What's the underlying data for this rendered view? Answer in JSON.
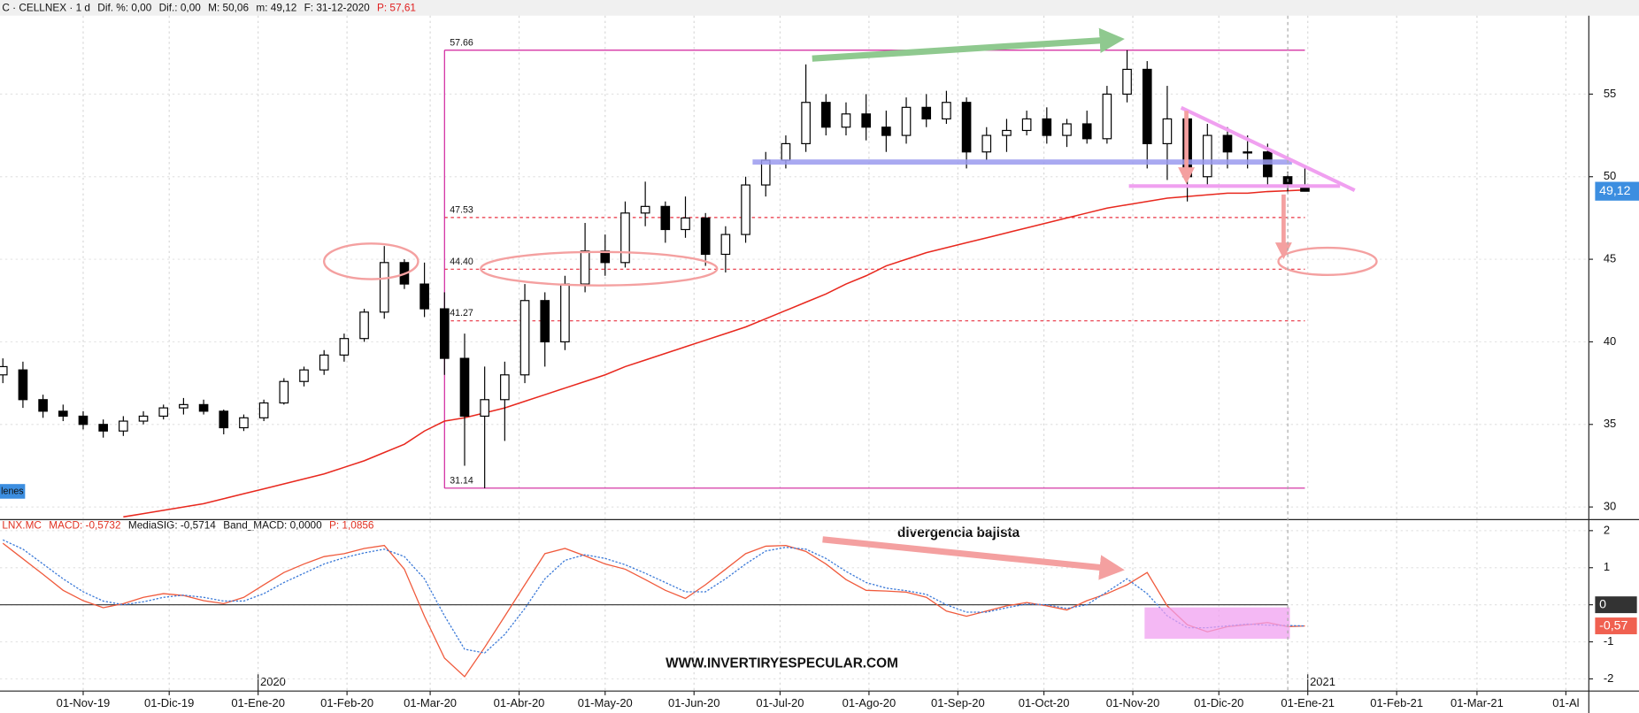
{
  "header": {
    "parts": [
      "C · CELLNEX · 1 d",
      "Dif. %: 0,00",
      "Dif.: 0,00",
      "M: 50,06",
      "m: 49,12",
      "F: 31-12-2020",
      "P: 57,61"
    ],
    "side_label": "lenes"
  },
  "chart_data": [
    {
      "type": "candlestick",
      "x": [
        "2019-10-04",
        "2019-10-11",
        "2019-10-18",
        "2019-10-25",
        "2019-11-01",
        "2019-11-08",
        "2019-11-15",
        "2019-11-22",
        "2019-11-29",
        "2019-12-06",
        "2019-12-13",
        "2019-12-20",
        "2019-12-27",
        "2020-01-03",
        "2020-01-10",
        "2020-01-17",
        "2020-01-24",
        "2020-01-31",
        "2020-02-07",
        "2020-02-14",
        "2020-02-21",
        "2020-02-28",
        "2020-03-06",
        "2020-03-13",
        "2020-03-20",
        "2020-03-27",
        "2020-04-03",
        "2020-04-10",
        "2020-04-17",
        "2020-04-24",
        "2020-05-01",
        "2020-05-08",
        "2020-05-15",
        "2020-05-22",
        "2020-05-29",
        "2020-06-05",
        "2020-06-12",
        "2020-06-19",
        "2020-06-26",
        "2020-07-03",
        "2020-07-10",
        "2020-07-17",
        "2020-07-24",
        "2020-07-31",
        "2020-08-07",
        "2020-08-14",
        "2020-08-21",
        "2020-08-28",
        "2020-09-04",
        "2020-09-11",
        "2020-09-18",
        "2020-09-25",
        "2020-10-02",
        "2020-10-09",
        "2020-10-16",
        "2020-10-23",
        "2020-10-30",
        "2020-11-06",
        "2020-11-13",
        "2020-11-20",
        "2020-11-27",
        "2020-12-04",
        "2020-12-11",
        "2020-12-18",
        "2020-12-25",
        "2020-12-31"
      ],
      "open": [
        38.0,
        38.3,
        36.5,
        35.8,
        35.5,
        35.0,
        34.6,
        35.2,
        35.5,
        36.0,
        36.2,
        35.8,
        34.8,
        35.4,
        36.3,
        37.6,
        38.3,
        39.2,
        40.2,
        41.8,
        44.8,
        43.5,
        42.0,
        39.0,
        35.5,
        36.5,
        38.0,
        42.5,
        40.0,
        43.5,
        45.5,
        44.8,
        47.8,
        48.2,
        46.8,
        47.5,
        45.3,
        46.5,
        49.5,
        51.0,
        52.0,
        54.5,
        53.0,
        53.8,
        53.0,
        52.5,
        54.2,
        53.5,
        54.5,
        51.5,
        52.5,
        52.8,
        53.5,
        52.5,
        53.2,
        52.3,
        55.0,
        56.5,
        52.0,
        53.5,
        50.0,
        52.5,
        51.5,
        51.5,
        50.0,
        49.5
      ],
      "high": [
        39.0,
        38.8,
        36.8,
        36.2,
        35.8,
        35.3,
        35.5,
        35.8,
        36.2,
        36.6,
        36.5,
        35.9,
        35.6,
        36.5,
        37.8,
        38.5,
        39.5,
        40.5,
        42.0,
        45.8,
        45.0,
        44.8,
        43.0,
        40.5,
        38.5,
        38.8,
        43.5,
        43.0,
        44.0,
        47.2,
        46.5,
        48.5,
        49.7,
        48.5,
        48.8,
        47.8,
        47.0,
        50.0,
        51.5,
        52.5,
        56.8,
        55.0,
        54.5,
        55.0,
        54.0,
        54.8,
        55.0,
        55.2,
        54.8,
        53.0,
        53.5,
        54.0,
        54.2,
        53.5,
        54.0,
        55.5,
        57.66,
        57.0,
        55.5,
        54.0,
        53.2,
        53.0,
        52.5,
        52.0,
        50.3,
        50.6
      ],
      "low": [
        37.5,
        36.0,
        35.4,
        35.2,
        34.7,
        34.2,
        34.3,
        35.0,
        35.3,
        35.6,
        35.6,
        34.4,
        34.6,
        35.2,
        36.2,
        37.3,
        38.0,
        38.8,
        40.0,
        41.4,
        43.2,
        41.5,
        38.0,
        32.5,
        31.14,
        34.0,
        37.5,
        38.5,
        39.5,
        43.0,
        44.0,
        44.5,
        47.0,
        46.0,
        46.3,
        44.6,
        44.2,
        46.0,
        48.8,
        50.5,
        51.5,
        52.5,
        52.5,
        52.2,
        51.5,
        52.0,
        53.0,
        53.2,
        50.5,
        51.0,
        51.5,
        52.5,
        52.0,
        51.8,
        52.0,
        52.0,
        54.5,
        50.5,
        49.8,
        48.5,
        49.5,
        50.5,
        50.5,
        49.5,
        49.0,
        49.1
      ],
      "close": [
        38.5,
        36.5,
        35.8,
        35.5,
        35.0,
        34.6,
        35.2,
        35.5,
        36.0,
        36.2,
        35.8,
        34.8,
        35.4,
        36.3,
        37.6,
        38.3,
        39.2,
        40.2,
        41.8,
        44.8,
        43.5,
        42.0,
        39.0,
        35.5,
        36.5,
        38.0,
        42.5,
        40.0,
        43.5,
        45.5,
        44.8,
        47.8,
        48.2,
        46.8,
        47.5,
        45.3,
        46.5,
        49.5,
        51.0,
        52.0,
        54.5,
        53.0,
        53.8,
        53.0,
        52.5,
        54.2,
        53.5,
        54.5,
        51.5,
        52.5,
        52.8,
        53.5,
        52.5,
        53.2,
        52.3,
        55.0,
        56.5,
        52.0,
        53.5,
        50.0,
        52.5,
        51.5,
        51.5,
        50.0,
        49.5,
        49.12
      ],
      "up_color": "#ffffff",
      "down_color": "#000000",
      "ma_values": [
        null,
        null,
        null,
        null,
        null,
        null,
        29.4,
        29.6,
        29.8,
        30.0,
        30.2,
        30.5,
        30.8,
        31.1,
        31.4,
        31.7,
        32.0,
        32.4,
        32.8,
        33.3,
        33.8,
        34.6,
        35.2,
        35.4,
        35.7,
        36.0,
        36.4,
        36.8,
        37.2,
        37.6,
        38.0,
        38.5,
        38.9,
        39.3,
        39.7,
        40.1,
        40.5,
        40.9,
        41.4,
        41.9,
        42.4,
        42.9,
        43.5,
        44.0,
        44.6,
        45.0,
        45.4,
        45.7,
        46.0,
        46.3,
        46.6,
        46.9,
        47.2,
        47.5,
        47.8,
        48.1,
        48.3,
        48.5,
        48.7,
        48.8,
        48.9,
        49.0,
        49.0,
        49.1,
        49.15,
        49.2
      ],
      "ma_color": "#e8281e",
      "xlim": [
        "2019-10-03",
        "2021-04-09"
      ],
      "ylim": [
        29.3,
        59.75
      ],
      "yticks": [
        30,
        35,
        40,
        45,
        50,
        55
      ],
      "xticks": [
        {
          "value": "2019-11-01",
          "label": "01-Nov-19"
        },
        {
          "value": "2019-12-01",
          "label": "01-Dic-19"
        },
        {
          "value": "2020-01-01",
          "label": "01-Ene-20"
        },
        {
          "value": "2020-02-01",
          "label": "01-Feb-20"
        },
        {
          "value": "2020-03-01",
          "label": "01-Mar-20"
        },
        {
          "value": "2020-04-01",
          "label": "01-Abr-20"
        },
        {
          "value": "2020-05-01",
          "label": "01-May-20"
        },
        {
          "value": "2020-06-01",
          "label": "01-Jun-20"
        },
        {
          "value": "2020-07-01",
          "label": "01-Jul-20"
        },
        {
          "value": "2020-08-01",
          "label": "01-Ago-20"
        },
        {
          "value": "2020-09-01",
          "label": "01-Sep-20"
        },
        {
          "value": "2020-10-01",
          "label": "01-Oct-20"
        },
        {
          "value": "2020-11-01",
          "label": "01-Nov-20"
        },
        {
          "value": "2020-12-01",
          "label": "01-Dic-20"
        },
        {
          "value": "2021-01-01",
          "label": "01-Ene-21"
        },
        {
          "value": "2021-02-01",
          "label": "01-Feb-21"
        },
        {
          "value": "2021-03-01",
          "label": "01-Mar-21"
        },
        {
          "value": "2021-04-01",
          "label": "01-Al"
        }
      ],
      "year_labels": [
        {
          "value": "2020-01-01",
          "label": "2020"
        },
        {
          "value": "2021-01-01",
          "label": "2021"
        }
      ],
      "levels": [
        57.66,
        47.53,
        {
          "value": 44.4,
          "label": "44.40"
        },
        41.27,
        31.14
      ],
      "level_start": "2020-03-06",
      "level_end": "2020-12-31",
      "level_color": "#d0209c",
      "level_mid_color": "#e83040",
      "last_price": {
        "value": 49.12,
        "label": "49,12"
      },
      "last_price_color": "#3c8ee0",
      "grid": true
    },
    {
      "type": "line",
      "legend_text": [
        "LNX.MC",
        "MACD: -0,5732",
        "MediaSIG: -0,5714",
        "Band_MACD: 0,0000",
        "P: 1,0856"
      ],
      "series": [
        {
          "color": "#f05a3c",
          "values": [
            1.66,
            1.24,
            0.82,
            0.39,
            0.11,
            -0.08,
            0.03,
            0.2,
            0.3,
            0.25,
            0.11,
            0.03,
            0.2,
            0.54,
            0.87,
            1.1,
            1.3,
            1.38,
            1.52,
            1.6,
            0.96,
            -0.31,
            -1.44,
            -1.94,
            -1.15,
            -0.31,
            0.54,
            1.38,
            1.52,
            1.32,
            1.1,
            0.96,
            0.68,
            0.39,
            0.17,
            0.54,
            0.96,
            1.38,
            1.58,
            1.6,
            1.44,
            1.1,
            0.68,
            0.39,
            0.37,
            0.34,
            0.2,
            -0.17,
            -0.31,
            -0.17,
            -0.03,
            0.06,
            -0.03,
            -0.14,
            0.11,
            0.3,
            0.54,
            0.87,
            -0.03,
            -0.54,
            -0.73,
            -0.59,
            -0.54,
            -0.48,
            -0.59,
            -0.5732
          ]
        },
        {
          "color": "#3c7ad8",
          "values": [
            1.75,
            1.5,
            1.1,
            0.7,
            0.35,
            0.1,
            0.0,
            0.08,
            0.2,
            0.26,
            0.2,
            0.1,
            0.1,
            0.3,
            0.6,
            0.85,
            1.1,
            1.27,
            1.4,
            1.5,
            1.3,
            0.7,
            -0.3,
            -1.2,
            -1.3,
            -0.8,
            -0.1,
            0.7,
            1.2,
            1.35,
            1.25,
            1.08,
            0.85,
            0.6,
            0.35,
            0.35,
            0.7,
            1.1,
            1.45,
            1.55,
            1.5,
            1.25,
            0.9,
            0.6,
            0.45,
            0.38,
            0.28,
            0.0,
            -0.2,
            -0.2,
            -0.08,
            0.02,
            0.0,
            -0.1,
            0.0,
            0.35,
            0.7,
            0.3,
            -0.3,
            -0.62,
            -0.62,
            -0.57,
            -0.52,
            -0.55,
            -0.56,
            -0.5714
          ]
        }
      ],
      "ylim": [
        -2.3,
        2.27
      ],
      "yticks": [
        -2,
        -1,
        0,
        1,
        2
      ],
      "tags": [
        0,
        {
          "value": -0.57,
          "label": "-0,57"
        }
      ],
      "tag_colors": [
        "#333333",
        "#f06050"
      ],
      "annotation": "divergencia bajista",
      "watermark": "WWW.INVERTIRYESPECULAR.COM",
      "grid": true
    }
  ]
}
